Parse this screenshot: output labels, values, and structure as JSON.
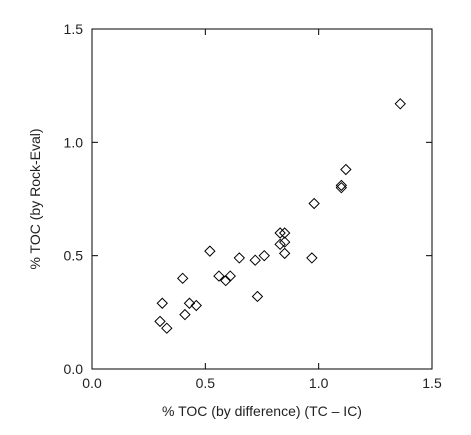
{
  "chart_data": {
    "type": "scatter",
    "title": "",
    "xlabel": "% TOC (by difference) (TC – IC)",
    "ylabel": "% TOC (by Rock-Eval)",
    "xlim": [
      0.0,
      1.5
    ],
    "ylim": [
      0.0,
      1.5
    ],
    "xticks": [
      "0.0",
      "0.5",
      "1.0",
      "1.5"
    ],
    "yticks": [
      "0.0",
      "0.5",
      "1.0",
      "1.5"
    ],
    "grid": false,
    "marker": "open-diamond",
    "color": "#000000",
    "points": [
      {
        "x": 0.3,
        "y": 0.21
      },
      {
        "x": 0.31,
        "y": 0.29
      },
      {
        "x": 0.33,
        "y": 0.18
      },
      {
        "x": 0.4,
        "y": 0.4
      },
      {
        "x": 0.41,
        "y": 0.24
      },
      {
        "x": 0.43,
        "y": 0.29
      },
      {
        "x": 0.46,
        "y": 0.28
      },
      {
        "x": 0.52,
        "y": 0.52
      },
      {
        "x": 0.56,
        "y": 0.41
      },
      {
        "x": 0.59,
        "y": 0.39
      },
      {
        "x": 0.61,
        "y": 0.41
      },
      {
        "x": 0.65,
        "y": 0.49
      },
      {
        "x": 0.72,
        "y": 0.48
      },
      {
        "x": 0.73,
        "y": 0.32
      },
      {
        "x": 0.76,
        "y": 0.5
      },
      {
        "x": 0.83,
        "y": 0.55
      },
      {
        "x": 0.83,
        "y": 0.6
      },
      {
        "x": 0.85,
        "y": 0.56
      },
      {
        "x": 0.85,
        "y": 0.6
      },
      {
        "x": 0.85,
        "y": 0.51
      },
      {
        "x": 0.97,
        "y": 0.49
      },
      {
        "x": 0.98,
        "y": 0.73
      },
      {
        "x": 1.1,
        "y": 0.8
      },
      {
        "x": 1.1,
        "y": 0.81
      },
      {
        "x": 1.12,
        "y": 0.88
      },
      {
        "x": 1.36,
        "y": 1.17
      }
    ]
  }
}
